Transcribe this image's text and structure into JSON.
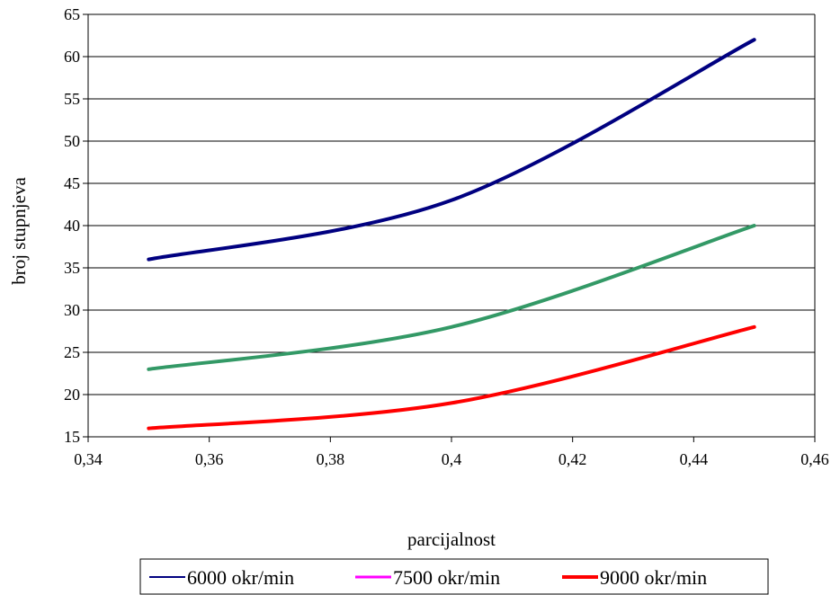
{
  "chart_data": {
    "type": "line",
    "title": "",
    "xlabel": "parcijalnost",
    "ylabel": "broj stupnjeva",
    "xlim": [
      0.34,
      0.46
    ],
    "ylim": [
      15,
      65
    ],
    "x_ticks": [
      0.34,
      0.36,
      0.38,
      0.4,
      0.42,
      0.44,
      0.46
    ],
    "x_tick_labels": [
      "0,34",
      "0,36",
      "0,38",
      "0,4",
      "0,42",
      "0,44",
      "0,46"
    ],
    "y_ticks": [
      15,
      20,
      25,
      30,
      35,
      40,
      45,
      50,
      55,
      60,
      65
    ],
    "y_tick_labels": [
      "15",
      "20",
      "25",
      "30",
      "35",
      "40",
      "45",
      "50",
      "55",
      "60",
      "65"
    ],
    "grid": "horizontal",
    "legend_position": "bottom",
    "x": [
      0.35,
      0.4,
      0.45
    ],
    "series": [
      {
        "name": "6000 okr/min",
        "color": "#000080",
        "values": [
          36,
          43,
          62
        ],
        "legend_color": "#000080",
        "legend_stroke": 2
      },
      {
        "name": "7500 okr/min",
        "color": "#339966",
        "values": [
          23,
          28,
          40
        ],
        "legend_color": "#ff00ff",
        "legend_stroke": 3
      },
      {
        "name": "9000 okr/min",
        "color": "#ff0000",
        "values": [
          16,
          19,
          28
        ],
        "legend_color": "#ff0000",
        "legend_stroke": 4
      }
    ]
  }
}
